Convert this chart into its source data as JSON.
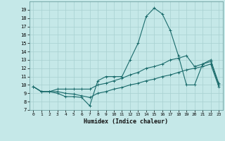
{
  "xlabel": "Humidex (Indice chaleur)",
  "bg_color": "#c5e8e8",
  "grid_color": "#a8d0d0",
  "line_color": "#1a6b6b",
  "xlim": [
    -0.5,
    23.5
  ],
  "ylim": [
    7,
    20
  ],
  "yticks": [
    7,
    8,
    9,
    10,
    11,
    12,
    13,
    14,
    15,
    16,
    17,
    18,
    19
  ],
  "xticks": [
    0,
    1,
    2,
    3,
    4,
    5,
    6,
    7,
    8,
    9,
    10,
    11,
    12,
    13,
    14,
    15,
    16,
    17,
    18,
    19,
    20,
    21,
    22,
    23
  ],
  "line1_x": [
    0,
    1,
    2,
    3,
    4,
    5,
    6,
    7,
    8,
    9,
    10,
    11,
    12,
    13,
    14,
    15,
    16,
    17,
    18,
    19,
    20,
    21,
    22,
    23
  ],
  "line1_y": [
    9.8,
    9.2,
    9.2,
    9.0,
    8.6,
    8.6,
    8.5,
    7.5,
    10.5,
    11.0,
    11.0,
    11.0,
    13.0,
    15.0,
    18.2,
    19.2,
    18.5,
    16.5,
    13.5,
    10.0,
    10.0,
    12.5,
    12.8,
    10.0
  ],
  "line2_x": [
    0,
    1,
    2,
    3,
    4,
    5,
    6,
    7,
    8,
    9,
    10,
    11,
    12,
    13,
    14,
    15,
    16,
    17,
    18,
    19,
    20,
    21,
    22,
    23
  ],
  "line2_y": [
    9.8,
    9.2,
    9.2,
    9.5,
    9.5,
    9.5,
    9.5,
    9.5,
    10.0,
    10.2,
    10.5,
    10.8,
    11.2,
    11.5,
    12.0,
    12.2,
    12.5,
    13.0,
    13.2,
    13.5,
    12.2,
    12.5,
    13.0,
    10.2
  ],
  "line3_x": [
    0,
    1,
    2,
    3,
    4,
    5,
    6,
    7,
    8,
    9,
    10,
    11,
    12,
    13,
    14,
    15,
    16,
    17,
    18,
    19,
    20,
    21,
    22,
    23
  ],
  "line3_y": [
    9.8,
    9.2,
    9.2,
    9.2,
    9.0,
    8.9,
    8.7,
    8.5,
    9.0,
    9.2,
    9.5,
    9.7,
    10.0,
    10.2,
    10.5,
    10.7,
    11.0,
    11.2,
    11.5,
    11.8,
    12.0,
    12.2,
    12.5,
    9.8
  ]
}
